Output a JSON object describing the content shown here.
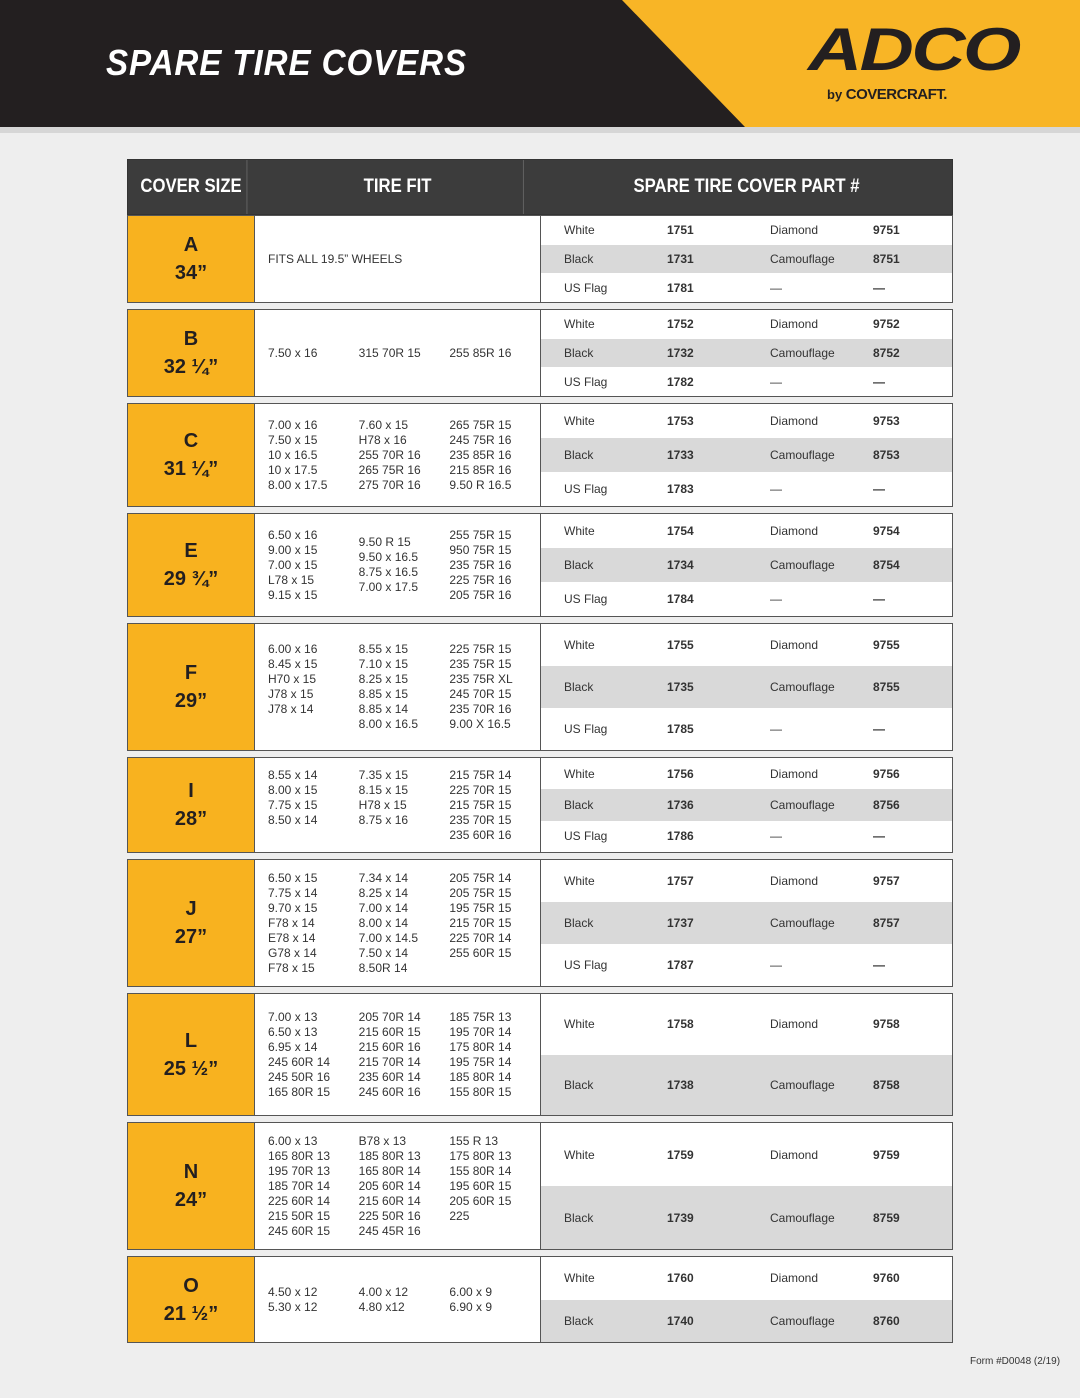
{
  "header": {
    "title": "SPARE TIRE COVERS",
    "logo_main": "ADCO",
    "logo_by": "by",
    "logo_brand": "COVERCRAFT."
  },
  "colors": {
    "dark": "#231f20",
    "accent": "#f8b21f",
    "row_gray": "#d9d9d9"
  },
  "table": {
    "headers": [
      "COVER SIZE",
      "TIRE FIT",
      "SPARE TIRE COVER PART #"
    ],
    "groups": [
      {
        "letter": "A",
        "size": "34”",
        "fit_text": "FITS ALL 19.5” WHEELS",
        "fit": [],
        "parts": [
          [
            "White",
            "1751",
            "Diamond",
            "9751"
          ],
          [
            "Black",
            "1731",
            "Camouflage",
            "8751"
          ],
          [
            "US Flag",
            "1781",
            "—",
            "—"
          ]
        ]
      },
      {
        "letter": "B",
        "size": "32 ¼”",
        "fit": [
          [
            "7.50 x 16"
          ],
          [
            "315 70R 15"
          ],
          [
            "255 85R 16"
          ]
        ],
        "parts": [
          [
            "White",
            "1752",
            "Diamond",
            "9752"
          ],
          [
            "Black",
            "1732",
            "Camouflage",
            "8752"
          ],
          [
            "US Flag",
            "1782",
            "—",
            "—"
          ]
        ]
      },
      {
        "letter": "C",
        "size": "31 ¼”",
        "fit": [
          [
            "7.00 x 16",
            "7.50 x 15",
            "10 x 16.5",
            "10 x 17.5",
            "8.00 x 17.5"
          ],
          [
            "7.60 x 15",
            "H78 x 16",
            "255 70R 16",
            "265 75R 16",
            "275 70R 16"
          ],
          [
            "265 75R 15",
            "245 75R 16",
            "235 85R 16",
            "215 85R 16",
            "9.50 R 16.5"
          ]
        ],
        "parts": [
          [
            "White",
            "1753",
            "Diamond",
            "9753"
          ],
          [
            "Black",
            "1733",
            "Camouflage",
            "8753"
          ],
          [
            "US Flag",
            "1783",
            "—",
            "—"
          ]
        ]
      },
      {
        "letter": "E",
        "size": "29 ¾”",
        "fit": [
          [
            "6.50 x 16",
            "9.00 x 15",
            "7.00 x 15",
            "L78 x 15",
            "9.15 x 15"
          ],
          [
            "9.50 R 15",
            "9.50 x 16.5",
            "8.75 x 16.5",
            "7.00 x 17.5"
          ],
          [
            "255 75R 15",
            "950 75R 15",
            "235 75R 16",
            "225 75R 16",
            "205 75R 16"
          ]
        ],
        "parts": [
          [
            "White",
            "1754",
            "Diamond",
            "9754"
          ],
          [
            "Black",
            "1734",
            "Camouflage",
            "8754"
          ],
          [
            "US Flag",
            "1784",
            "—",
            "—"
          ]
        ]
      },
      {
        "letter": "F",
        "size": "29”",
        "fit": [
          [
            "6.00 x 16",
            "8.45 x 15",
            "H70 x 15",
            "J78 x 15",
            "J78 x 14",
            ""
          ],
          [
            "8.55 x 15",
            "7.10 x 15",
            "8.25 x 15",
            "8.85 x 15",
            "8.85 x 14",
            "8.00 x 16.5"
          ],
          [
            "225 75R 15",
            "235 75R 15",
            "235 75R XL",
            "245 70R 15",
            "235 70R 16",
            "9.00 X 16.5"
          ]
        ],
        "parts": [
          [
            "White",
            "1755",
            "Diamond",
            "9755"
          ],
          [
            "Black",
            "1735",
            "Camouflage",
            "8755"
          ],
          [
            "US Flag",
            "1785",
            "—",
            "—"
          ]
        ]
      },
      {
        "letter": "I",
        "size": "28”",
        "fit": [
          [
            "8.55 x 14",
            "8.00 x 15",
            "7.75 x 15",
            "8.50 x 14",
            ""
          ],
          [
            "7.35 x 15",
            "8.15 x 15",
            "H78 x 15",
            "8.75 x 16",
            ""
          ],
          [
            "215 75R 14",
            "225 70R 15",
            "215 75R 15",
            "235 70R 15",
            "235 60R 16"
          ]
        ],
        "parts": [
          [
            "White",
            "1756",
            "Diamond",
            "9756"
          ],
          [
            "Black",
            "1736",
            "Camouflage",
            "8756"
          ],
          [
            "US Flag",
            "1786",
            "—",
            "—"
          ]
        ]
      },
      {
        "letter": "J",
        "size": "27”",
        "fit": [
          [
            "6.50 x 15",
            "7.75 x 14",
            "9.70 x 15",
            "F78 x 14",
            "E78 x 14",
            "G78 x 14",
            "F78 x 15"
          ],
          [
            "7.34 x 14",
            "8.25 x 14",
            "7.00 x 14",
            "8.00 x 14",
            "7.00 x 14.5",
            "7.50 x 14",
            "8.50R 14"
          ],
          [
            "205 75R 14",
            "205 75R 15",
            "195 75R 15",
            "215 70R 15",
            "225 70R 14",
            "255 60R 15",
            ""
          ]
        ],
        "parts": [
          [
            "White",
            "1757",
            "Diamond",
            "9757"
          ],
          [
            "Black",
            "1737",
            "Camouflage",
            "8757"
          ],
          [
            "US Flag",
            "1787",
            "—",
            "—"
          ]
        ]
      },
      {
        "letter": "L",
        "size": "25 ½”",
        "fit": [
          [
            "7.00 x 13",
            "6.50 x 13",
            "6.95 x 14",
            "245 60R 14",
            "245 50R 16",
            "165 80R 15"
          ],
          [
            "205 70R 14",
            "215 60R 15",
            "215 60R 16",
            "215 70R 14",
            "235 60R 14",
            "245 60R 16"
          ],
          [
            "185 75R 13",
            "195 70R 14",
            "175 80R 14",
            "195 75R 14",
            "185 80R 14",
            "155 80R 15"
          ]
        ],
        "parts": [
          [
            "White",
            "1758",
            "Diamond",
            "9758"
          ],
          [
            "Black",
            "1738",
            "Camouflage",
            "8758"
          ]
        ]
      },
      {
        "letter": "N",
        "size": "24”",
        "fit": [
          [
            "6.00 x 13",
            "165 80R 13",
            "195 70R 13",
            "185 70R 14",
            "225 60R 14",
            "215 50R 15",
            "245 60R 15"
          ],
          [
            "B78 x 13",
            "185 80R 13",
            "165 80R 14",
            "205 60R 14",
            "215 60R 14",
            "225 50R 16",
            "245 45R 16"
          ],
          [
            "155 R 13",
            "175 80R 13",
            "155 80R 14",
            "195 60R 15",
            "205 60R 15",
            "225",
            ""
          ]
        ],
        "parts": [
          [
            "White",
            "1759",
            "Diamond",
            "9759"
          ],
          [
            "Black",
            "1739",
            "Camouflage",
            "8759"
          ]
        ]
      },
      {
        "letter": "O",
        "size": "21 ½”",
        "fit": [
          [
            "4.50 x 12",
            "5.30 x 12"
          ],
          [
            "4.00 x 12",
            "4.80 x12"
          ],
          [
            "6.00 x 9",
            "6.90 x 9"
          ]
        ],
        "parts": [
          [
            "White",
            "1760",
            "Diamond",
            "9760"
          ],
          [
            "Black",
            "1740",
            "Camouflage",
            "8760"
          ]
        ]
      }
    ]
  },
  "footer": {
    "form": "Form #D0048 (2/19)"
  }
}
